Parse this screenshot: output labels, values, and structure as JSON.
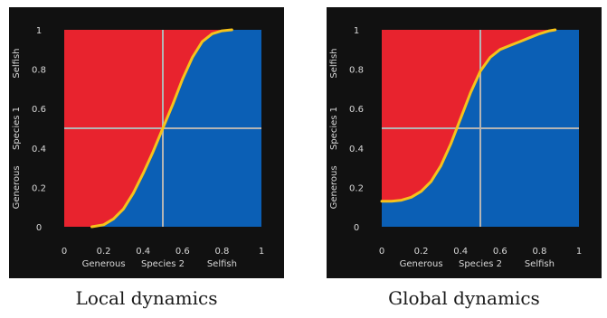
{
  "colors": {
    "background": "#111111",
    "generous_region": "#e8232e",
    "selfish_region": "#0b5fb5",
    "curve": "#f6c21a",
    "crosshair": "#b4b4b4"
  },
  "chart_data": [
    {
      "type": "area",
      "caption": "Local dynamics",
      "xlim": [
        0,
        1
      ],
      "ylim": [
        0,
        1
      ],
      "x_ticks": [
        "0",
        "0.2",
        "0.4",
        "0.6",
        "0.8",
        "1"
      ],
      "y_ticks": [
        "0",
        "0.2",
        "0.4",
        "0.6",
        "0.8",
        "1"
      ],
      "x_labels": {
        "low": "Generous",
        "mid": "Species 2",
        "high": "Selfish"
      },
      "y_labels": {
        "low": "Generous",
        "mid": "Species 1",
        "high": "Selfish"
      },
      "crosshair": {
        "x": 0.5,
        "y": 0.5
      },
      "boundary": {
        "x": [
          0.14,
          0.2,
          0.25,
          0.3,
          0.35,
          0.4,
          0.45,
          0.5,
          0.55,
          0.6,
          0.65,
          0.7,
          0.75,
          0.8,
          0.85
        ],
        "y": [
          0.0,
          0.01,
          0.04,
          0.09,
          0.17,
          0.27,
          0.38,
          0.5,
          0.62,
          0.75,
          0.86,
          0.94,
          0.98,
          0.995,
          1.0
        ]
      }
    },
    {
      "type": "area",
      "caption": "Global dynamics",
      "xlim": [
        0,
        1
      ],
      "ylim": [
        0,
        1
      ],
      "x_ticks": [
        "0",
        "0.2",
        "0.4",
        "0.6",
        "0.8",
        "1"
      ],
      "y_ticks": [
        "0",
        "0.2",
        "0.4",
        "0.6",
        "0.8",
        "1"
      ],
      "x_labels": {
        "low": "Generous",
        "mid": "Species 2",
        "high": "Selfish"
      },
      "y_labels": {
        "low": "Generous",
        "mid": "Species 1",
        "high": "Selfish"
      },
      "crosshair": {
        "x": 0.5,
        "y": 0.5
      },
      "boundary": {
        "x": [
          0.0,
          0.05,
          0.1,
          0.15,
          0.2,
          0.25,
          0.3,
          0.35,
          0.4,
          0.45,
          0.5,
          0.55,
          0.6,
          0.65,
          0.7,
          0.75,
          0.8,
          0.85,
          0.88
        ],
        "y": [
          0.13,
          0.13,
          0.135,
          0.15,
          0.18,
          0.23,
          0.31,
          0.42,
          0.55,
          0.68,
          0.79,
          0.86,
          0.9,
          0.92,
          0.94,
          0.96,
          0.98,
          0.995,
          1.0
        ]
      }
    }
  ]
}
